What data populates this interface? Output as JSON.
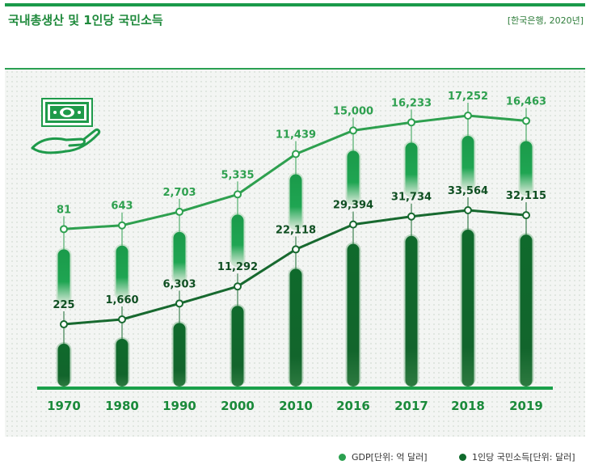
{
  "title": "국내총생산 및 1인당 국민소득",
  "source": "[한국은행, 2020년]",
  "colors": {
    "gdp": "#1ea04f",
    "gni": "#0f6a2c",
    "gdp_line": "#2ea04f",
    "gni_line": "#17692f",
    "axis": "#1aa04a",
    "category_text": "#1a8a3a"
  },
  "icon": "money-hand-icon",
  "legend": [
    {
      "name": "GDP[단위: 억 달러]",
      "color": "#2aa04f"
    },
    {
      "name": "1인당 국민소득[단위: 달러]",
      "color": "#0f6a2c"
    }
  ],
  "chart_data": {
    "type": "line",
    "categories": [
      "1970",
      "1980",
      "1990",
      "2000",
      "2010",
      "2016",
      "2017",
      "2018",
      "2019"
    ],
    "series": [
      {
        "name": "GDP[단위: 억 달러]",
        "values": [
          81,
          643,
          2703,
          5335,
          11439,
          15000,
          16233,
          17252,
          16463
        ],
        "labels": [
          "81",
          "643",
          "2,703",
          "5,335",
          "11,439",
          "15,000",
          "16,233",
          "17,252",
          "16,463"
        ]
      },
      {
        "name": "1인당 국민소득[단위: 달러]",
        "values": [
          225,
          1660,
          6303,
          11292,
          22118,
          29394,
          31734,
          33564,
          32115
        ],
        "labels": [
          "225",
          "1,660",
          "6,303",
          "11,292",
          "22,118",
          "29,394",
          "31,734",
          "33,564",
          "32,115"
        ]
      }
    ],
    "gdp_range": [
      0,
      17252
    ],
    "gni_range": [
      0,
      33564
    ],
    "grid": false,
    "legend_position": "bottom-right"
  }
}
